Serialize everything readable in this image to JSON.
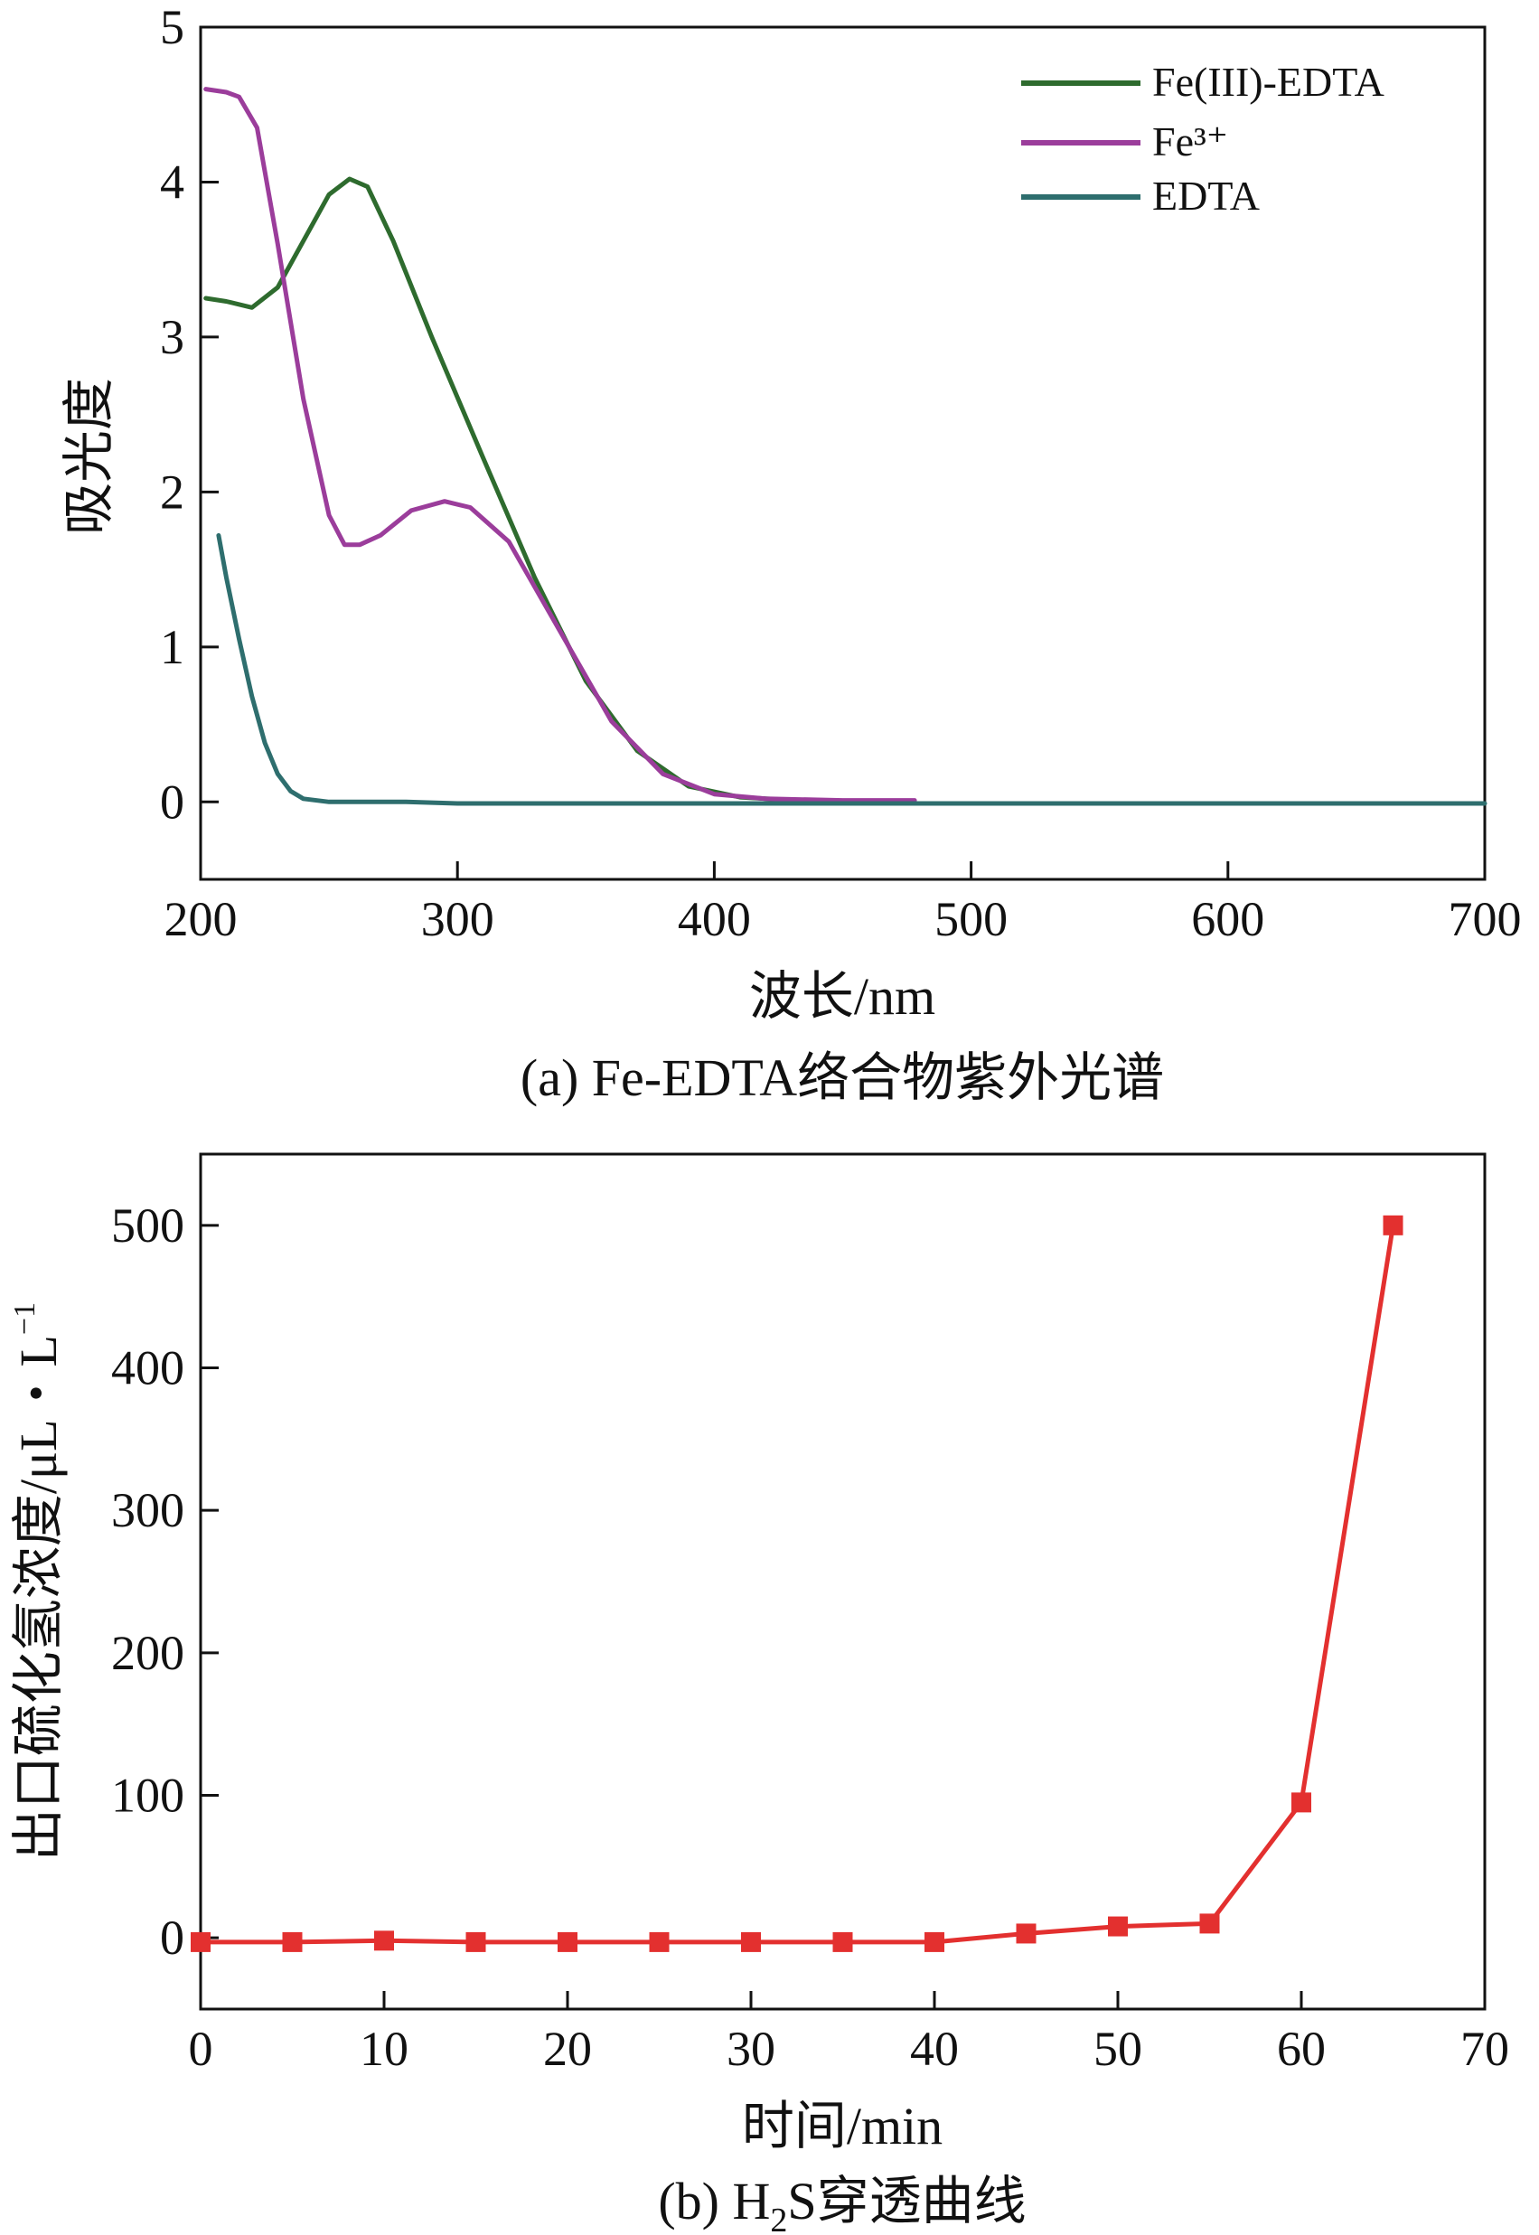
{
  "chart_data": [
    {
      "type": "line",
      "title": "",
      "caption": "(a) Fe-EDTA络合物紫外光谱",
      "xlabel": "波长/nm",
      "ylabel": "吸光度",
      "xlim": [
        200,
        700
      ],
      "ylim": [
        -0.5,
        5
      ],
      "xticks": [
        200,
        300,
        400,
        500,
        600,
        700
      ],
      "yticks": [
        0,
        1,
        2,
        3,
        4,
        5
      ],
      "legend_position": "top-right",
      "series": [
        {
          "name": "Fe(III)-EDTA",
          "color": "#2e6b2e",
          "x": [
            202,
            210,
            220,
            230,
            240,
            250,
            258,
            265,
            275,
            290,
            310,
            330,
            350,
            370,
            390,
            410,
            432
          ],
          "y": [
            3.25,
            3.23,
            3.19,
            3.32,
            3.62,
            3.92,
            4.02,
            3.97,
            3.62,
            3.0,
            2.22,
            1.45,
            0.78,
            0.33,
            0.1,
            0.03,
            0.01
          ]
        },
        {
          "name": "Fe³⁺",
          "color": "#9b3d9b",
          "x": [
            202,
            210,
            215,
            222,
            230,
            240,
            250,
            256,
            262,
            270,
            282,
            295,
            305,
            320,
            340,
            360,
            380,
            400,
            420,
            450,
            478
          ],
          "y": [
            4.6,
            4.58,
            4.55,
            4.35,
            3.6,
            2.6,
            1.85,
            1.66,
            1.66,
            1.72,
            1.88,
            1.94,
            1.9,
            1.68,
            1.1,
            0.52,
            0.18,
            0.05,
            0.02,
            0.01,
            0.01
          ]
        },
        {
          "name": "EDTA",
          "color": "#2e6e6e",
          "x": [
            207,
            210,
            215,
            220,
            225,
            230,
            235,
            240,
            250,
            260,
            280,
            300,
            400,
            500,
            600,
            700
          ],
          "y": [
            1.72,
            1.45,
            1.05,
            0.68,
            0.38,
            0.18,
            0.07,
            0.02,
            0.0,
            0.0,
            0.0,
            -0.01,
            -0.01,
            -0.01,
            -0.01,
            -0.01
          ]
        }
      ]
    },
    {
      "type": "line",
      "title": "",
      "caption_prefix": "(b) H",
      "caption_sub": "2",
      "caption_suffix": "S穿透曲线",
      "xlabel": "时间/min",
      "ylabel_main": "出口硫化氢浓度/μL・L",
      "ylabel_sup": "−1",
      "xlim": [
        0,
        70
      ],
      "ylim": [
        -50,
        550
      ],
      "xticks": [
        0,
        10,
        20,
        30,
        40,
        50,
        60,
        70
      ],
      "yticks": [
        0,
        100,
        200,
        300,
        400,
        500
      ],
      "markers": "square",
      "series": [
        {
          "name": "H₂S",
          "color": "#e3302f",
          "x": [
            0,
            5,
            10,
            15,
            20,
            25,
            30,
            35,
            40,
            45,
            50,
            55,
            60,
            65
          ],
          "y": [
            -3,
            -3,
            -2,
            -3,
            -3,
            -3,
            -3,
            -3,
            -3,
            3,
            8,
            10,
            95,
            500
          ]
        }
      ]
    }
  ]
}
